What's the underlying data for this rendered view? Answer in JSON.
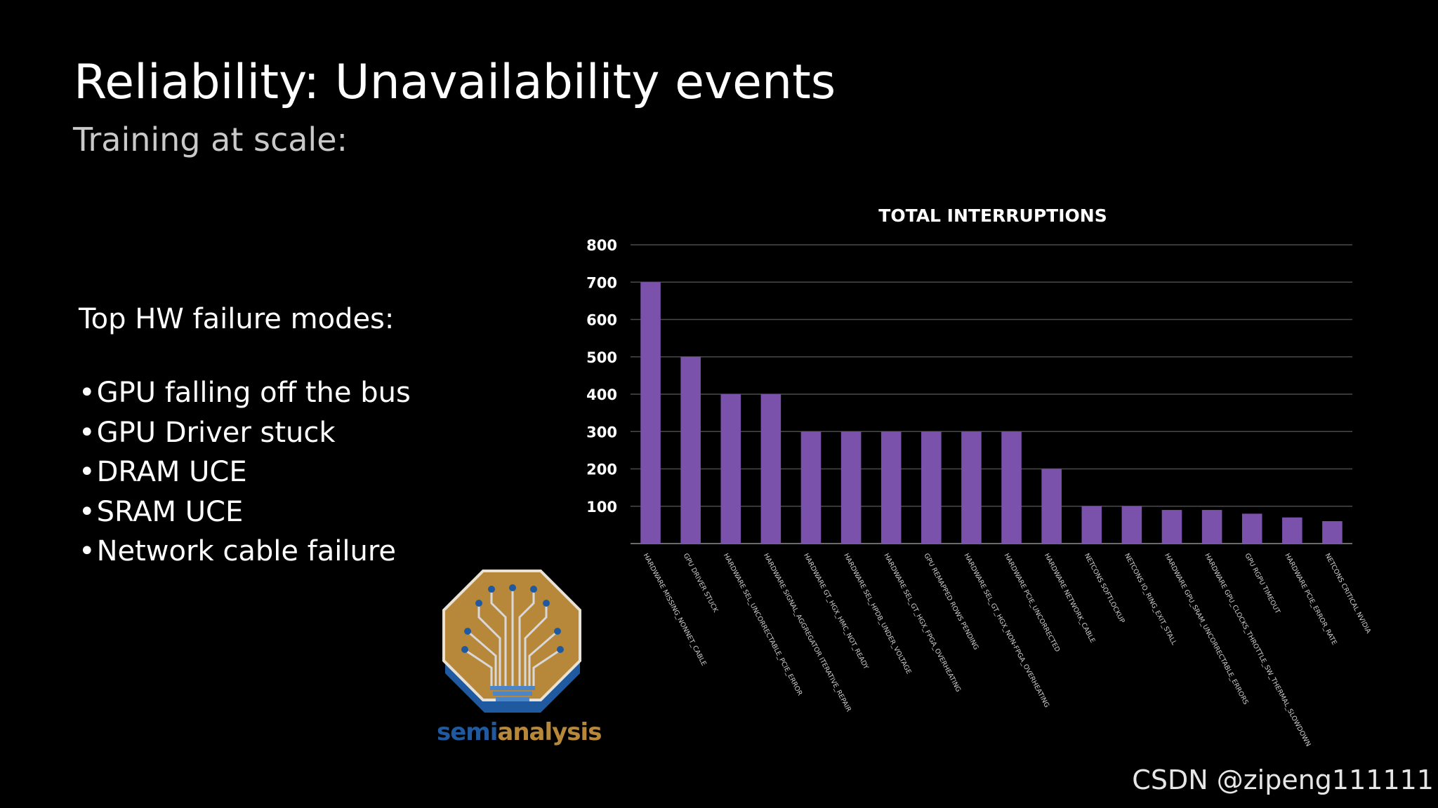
{
  "slide": {
    "title": "Reliability:  Unavailability events",
    "subtitle": "Training at scale:"
  },
  "failure_modes": {
    "heading": "Top HW failure modes:",
    "bullet": "•",
    "items": [
      "GPU falling off the bus",
      "GPU Driver stuck",
      "DRAM UCE",
      "SRAM UCE",
      "Network cable failure"
    ]
  },
  "logo": {
    "text_part1": "semi",
    "text_part2": "analysis",
    "colors": {
      "gold": "#b8883a",
      "blue": "#1f5aa0"
    }
  },
  "watermark": "CSDN @zipeng111111",
  "chart_data": {
    "type": "bar",
    "title": "TOTAL INTERRUPTIONS",
    "xlabel": "",
    "ylabel": "",
    "ylim": [
      0,
      800
    ],
    "yticks": [
      100,
      200,
      300,
      400,
      500,
      600,
      700,
      800
    ],
    "grid": true,
    "bar_color": "#7b52ab",
    "categories": [
      "HARDWARE MISSING_NONNET_CABLE",
      "GPU DRIVER STUCK",
      "HARDWARE SEL_UNCORRECTABLE_PCIE_ERROR",
      "HARDWARE SIGNAL_AGGREGATOR ITERATIVE_REPAIR",
      "HARDWARE GT_HGX_HMC_NOT_READY",
      "HARDWARE SEL_HPDB_UNDER_VOLTAGE",
      "HARDWARE SEL_GT_HGX_FPGA_OVERHEATING",
      "GPU REMAPPED ROWS PENDING",
      "HARDWARE SEL_GT_HGX_NON-FPGA_OVERHEATING",
      "HARDWARE PCIE_UNCORRECTED",
      "HARDWARE NETWORK_CABLE",
      "NETCONS SOFTLOCKUP",
      "NETCONS IO_RING_EXIT_STALL",
      "HARDWARE GPU_SRAM_UNCORRECTABLE_ERRORS",
      "HARDWARE GPU_CLOCKS_THROTTLE_SW_THERMAL_SLOWDOWN",
      "GPU RGPU TIMEOUT",
      "HARDWARE PCIE_ERROR_RATE",
      "NETCONS CRITICAL NVIDIA"
    ],
    "values": [
      700,
      500,
      400,
      400,
      300,
      300,
      300,
      300,
      300,
      300,
      200,
      100,
      100,
      90,
      90,
      80,
      70,
      60
    ]
  }
}
